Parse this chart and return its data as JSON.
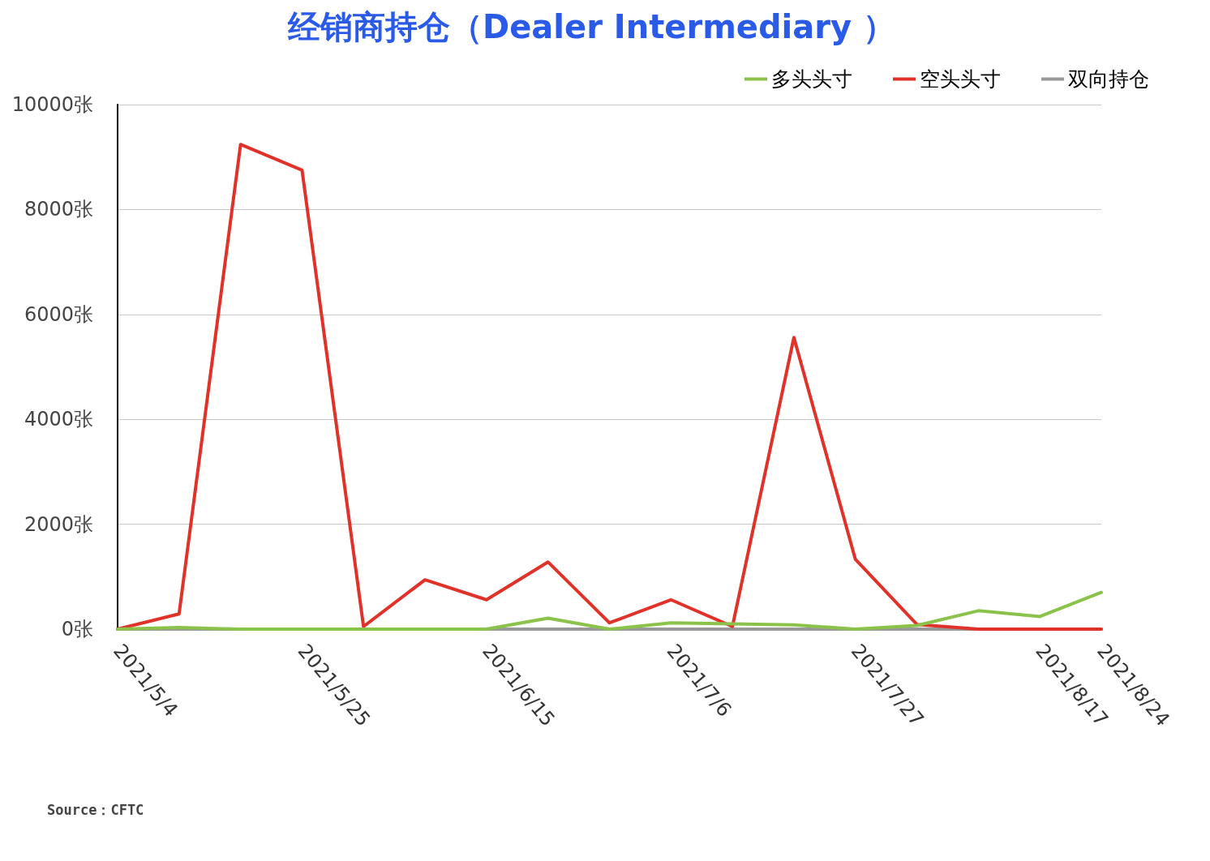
{
  "chart_data": {
    "type": "line",
    "title": "经销商持仓（Dealer Intermediary ）",
    "categories": [
      "2021/5/4",
      null,
      null,
      "2021/5/25",
      null,
      null,
      "2021/6/15",
      null,
      null,
      "2021/7/6",
      null,
      null,
      "2021/7/27",
      null,
      null,
      "2021/8/17",
      "2021/8/24"
    ],
    "series": [
      {
        "name": "多头头寸",
        "color": "#8bc34a",
        "values": [
          0,
          30,
          0,
          0,
          0,
          0,
          0,
          210,
          0,
          120,
          100,
          80,
          0,
          70,
          350,
          240,
          700
        ]
      },
      {
        "name": "空头头寸",
        "color": "#e1322a",
        "values": [
          0,
          290,
          9240,
          8750,
          50,
          940,
          560,
          1280,
          120,
          560,
          50,
          5560,
          1330,
          90,
          0,
          0,
          0
        ]
      },
      {
        "name": "双向持仓",
        "color": "#999999",
        "values": [
          0,
          0,
          0,
          0,
          0,
          0,
          0,
          0,
          0,
          0,
          0,
          0,
          0,
          0,
          0,
          0,
          0
        ]
      }
    ],
    "ylim": [
      0,
      10000
    ],
    "yticks": [
      {
        "value": 0,
        "label": "0张"
      },
      {
        "value": 2000,
        "label": "2000张"
      },
      {
        "value": 4000,
        "label": "4000张"
      },
      {
        "value": 6000,
        "label": "6000张"
      },
      {
        "value": 8000,
        "label": "8000张"
      },
      {
        "value": 10000,
        "label": "10000张"
      }
    ],
    "grid": "y",
    "legend": "top right",
    "marker": "none",
    "line_style": "solid",
    "annotations": [
      "Source：CFTC"
    ]
  }
}
